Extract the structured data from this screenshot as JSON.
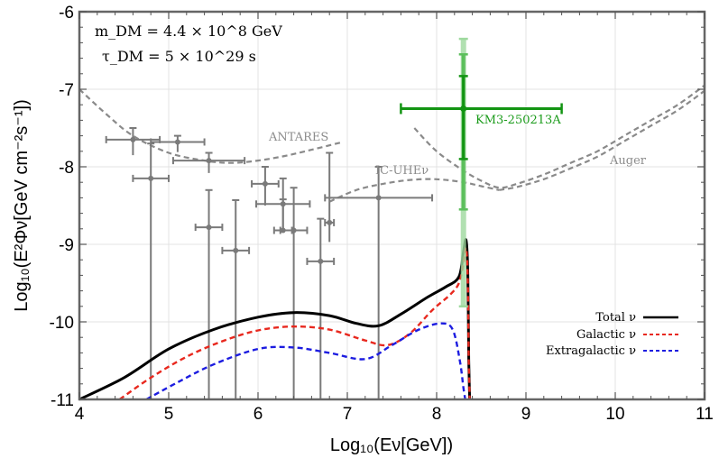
{
  "chart_data": {
    "type": "line",
    "xlabel": "Log₁₀(Eν[GeV])",
    "ylabel": "Log₁₀(E²Φν[GeV cm⁻²s⁻¹])",
    "xlim": [
      4,
      11
    ],
    "ylim": [
      -11,
      -6
    ],
    "xticks": [
      "4",
      "5",
      "6",
      "7",
      "8",
      "9",
      "10",
      "11"
    ],
    "yticks": [
      "-6",
      "-7",
      "-8",
      "-9",
      "-10",
      "-11"
    ],
    "grid": true,
    "params": {
      "mass": "m_DM = 4.4 × 10^8 GeV",
      "lifetime": "τ_DM = 5 × 10^29 s"
    },
    "legend_position": "bottom-right",
    "series": [
      {
        "name": "Total ν",
        "style": "solid",
        "color": "#000000",
        "x": [
          4.0,
          4.5,
          5.0,
          5.5,
          6.0,
          6.4,
          6.8,
          7.1,
          7.35,
          7.6,
          7.9,
          8.1,
          8.25,
          8.3,
          8.33,
          8.35,
          8.36,
          8.37
        ],
        "y": [
          -11.0,
          -10.72,
          -10.35,
          -10.1,
          -9.94,
          -9.88,
          -9.92,
          -10.02,
          -10.05,
          -9.9,
          -9.68,
          -9.55,
          -9.42,
          -9.1,
          -8.95,
          -9.4,
          -10.5,
          -11.0
        ]
      },
      {
        "name": "Galactic ν",
        "style": "dashed",
        "color": "#e8281e",
        "x": [
          4.45,
          4.8,
          5.2,
          5.6,
          6.0,
          6.4,
          6.8,
          7.2,
          7.45,
          7.7,
          7.95,
          8.15,
          8.25,
          8.3,
          8.33,
          8.35,
          8.36,
          8.37
        ],
        "y": [
          -11.0,
          -10.72,
          -10.45,
          -10.25,
          -10.11,
          -10.06,
          -10.1,
          -10.24,
          -10.3,
          -10.15,
          -9.85,
          -9.65,
          -9.5,
          -9.25,
          -9.05,
          -9.5,
          -10.5,
          -11.0
        ]
      },
      {
        "name": "Extragalactic ν",
        "style": "dashed",
        "color": "#1c1ce0",
        "x": [
          4.75,
          5.1,
          5.5,
          6.0,
          6.4,
          6.8,
          7.2,
          7.5,
          7.8,
          8.05,
          8.18,
          8.26,
          8.3,
          8.32
        ],
        "y": [
          -11.0,
          -10.78,
          -10.55,
          -10.35,
          -10.33,
          -10.4,
          -10.48,
          -10.3,
          -10.1,
          -10.02,
          -10.1,
          -10.5,
          -10.85,
          -11.0
        ]
      }
    ],
    "sensitivity_curves": [
      {
        "name": "ANTARES",
        "x": [
          4.0,
          4.3,
          4.6,
          5.0,
          5.4,
          5.7,
          6.0,
          6.3,
          6.6,
          6.95
        ],
        "y": [
          -7.0,
          -7.32,
          -7.6,
          -7.82,
          -7.92,
          -7.95,
          -7.92,
          -7.86,
          -7.78,
          -7.68
        ]
      },
      {
        "name": "IC-UHEν",
        "x": [
          6.8,
          7.1,
          7.4,
          7.7,
          8.0,
          8.3,
          8.5,
          8.7
        ],
        "y": [
          -8.45,
          -8.3,
          -8.22,
          -8.17,
          -8.16,
          -8.2,
          -8.25,
          -8.3
        ]
      },
      {
        "name": "Auger",
        "x": [
          7.75,
          8.0,
          8.3,
          8.5,
          8.7,
          8.9,
          9.2,
          9.5,
          9.8,
          10.1,
          10.4,
          10.7,
          11.0
        ],
        "y": [
          -7.5,
          -7.8,
          -8.05,
          -8.18,
          -8.27,
          -8.22,
          -8.1,
          -7.95,
          -7.8,
          -7.6,
          -7.4,
          -7.2,
          -6.95
        ]
      },
      {
        "name": "Auger_b",
        "x": [
          8.7,
          8.9,
          9.2,
          9.5,
          9.8,
          10.1,
          10.4,
          10.7,
          11.0
        ],
        "y": [
          -8.3,
          -8.26,
          -8.16,
          -8.02,
          -7.87,
          -7.67,
          -7.47,
          -7.27,
          -7.02
        ]
      }
    ],
    "data_points": [
      {
        "x": 4.6,
        "y": -7.65,
        "xerr": 0.3,
        "yup": 0.15,
        "ydn": 0.2
      },
      {
        "x": 4.8,
        "y": -8.15,
        "xerr": 0.2,
        "yup": 0.45,
        "ydn": 2.9
      },
      {
        "x": 5.1,
        "y": -7.68,
        "xerr": 0.3,
        "yup": 0.08,
        "ydn": 0.13
      },
      {
        "x": 5.45,
        "y": -7.92,
        "xerr": 0.4,
        "yup": 0.1,
        "ydn": 0.16
      },
      {
        "x": 5.45,
        "y": -8.78,
        "xerr": 0.15,
        "yup": 0.48,
        "ydn": 2.3
      },
      {
        "x": 5.75,
        "y": -9.08,
        "xerr": 0.15,
        "yup": 0.65,
        "ydn": 2.0
      },
      {
        "x": 6.08,
        "y": -8.22,
        "xerr": 0.15,
        "yup": 0.22,
        "ydn": 0.28
      },
      {
        "x": 6.28,
        "y": -8.48,
        "xerr": 0.3,
        "yup": 0.33,
        "ydn": 0.32
      },
      {
        "x": 6.28,
        "y": -8.82,
        "xerr": 0.1,
        "yup": 0.4,
        "ydn": 0.02
      },
      {
        "x": 6.4,
        "y": -8.82,
        "xerr": 0.15,
        "yup": 0.55,
        "ydn": 2.2
      },
      {
        "x": 6.7,
        "y": -9.22,
        "xerr": 0.15,
        "yup": 0.55,
        "ydn": 1.8
      },
      {
        "x": 6.8,
        "y": -8.72,
        "xerr": 0.05,
        "yup": 0.9,
        "ydn": 0.25
      },
      {
        "x": 7.35,
        "y": -8.4,
        "xerr": 0.6,
        "yup": 0.4,
        "ydn": 2.6
      }
    ],
    "event": {
      "name": "KM3-250213A",
      "x": 8.3,
      "y": -7.25,
      "xlo": 7.6,
      "xhi": 9.4,
      "ylo68": -7.9,
      "yhi68": -6.83,
      "ylo95": -8.55,
      "yhi95": -6.55,
      "ylo99": -9.8,
      "yhi99": -6.35
    },
    "annotations": [
      "ANTARES",
      "IC-UHEν",
      "Auger",
      "KM3-250213A"
    ]
  }
}
